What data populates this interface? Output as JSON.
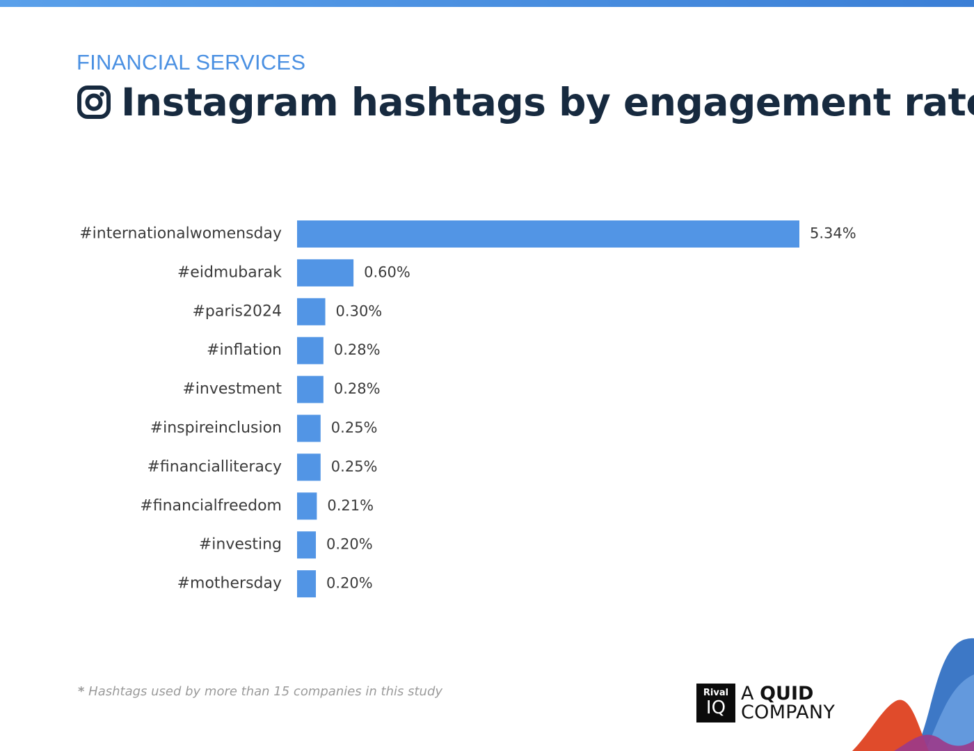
{
  "header": {
    "category": "FINANCIAL SERVICES",
    "title": "Instagram hashtags by engagement rate",
    "icon": "instagram-icon"
  },
  "chart_data": {
    "type": "bar",
    "orientation": "horizontal",
    "categories": [
      "#internationalwomensday",
      "#eidmubarak",
      "#paris2024",
      "#inflation",
      "#investment",
      "#inspireinclusion",
      "#financialliteracy",
      "#financialfreedom",
      "#investing",
      "#mothersday"
    ],
    "values": [
      5.34,
      0.6,
      0.3,
      0.28,
      0.28,
      0.25,
      0.25,
      0.21,
      0.2,
      0.2
    ],
    "value_labels": [
      "5.34%",
      "0.60%",
      "0.30%",
      "0.28%",
      "0.28%",
      "0.25%",
      "0.25%",
      "0.21%",
      "0.20%",
      "0.20%"
    ],
    "unit": "%",
    "bar_color": "#5295e5",
    "grid": false
  },
  "footnote": {
    "star": "*",
    "text": "Hashtags used by more than 15 companies in this study"
  },
  "logo": {
    "box_line1": "Rival",
    "box_line2": "IQ",
    "line1_prefix": "A ",
    "line1_bold": "QUID",
    "line2": "COMPANY"
  },
  "colors": {
    "accent": "#4a90e2",
    "title": "#172a3f",
    "bar": "#5295e5"
  }
}
